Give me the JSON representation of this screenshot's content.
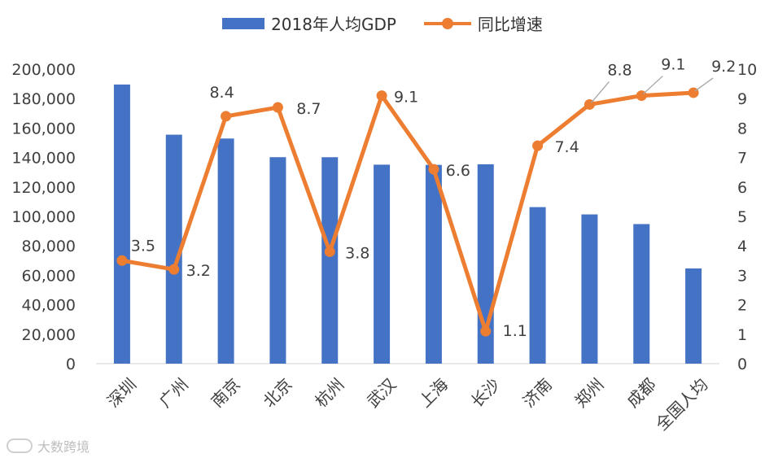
{
  "chart_data": {
    "type": "bar+line",
    "categories": [
      "深圳",
      "广州",
      "南京",
      "北京",
      "杭州",
      "武汉",
      "上海",
      "长沙",
      "济南",
      "郑州",
      "成都",
      "全国人均"
    ],
    "series": [
      {
        "name": "2018年人均GDP",
        "type": "bar",
        "axis": "left",
        "values": [
          189568,
          155491,
          152886,
          140211,
          140180,
          135136,
          134982,
          135388,
          106302,
          101349,
          94782,
          64644
        ]
      },
      {
        "name": "同比增速",
        "type": "line",
        "axis": "right",
        "values": [
          3.5,
          3.2,
          8.4,
          8.7,
          3.8,
          9.1,
          6.6,
          1.1,
          7.4,
          8.8,
          9.1,
          9.2
        ],
        "labels": [
          "3.5",
          "3.2",
          "8.4",
          "8.7",
          "3.8",
          "9.1",
          "6.6",
          "1.1",
          "7.4",
          "8.8",
          "9.1",
          "9.2"
        ]
      }
    ],
    "y_left": {
      "min": 0,
      "max": 200000,
      "step": 20000,
      "ticks": [
        "0",
        "20,000",
        "40,000",
        "60,000",
        "80,000",
        "100,000",
        "120,000",
        "140,000",
        "160,000",
        "180,000",
        "200,000"
      ]
    },
    "y_right": {
      "min": 0,
      "max": 10,
      "step": 1,
      "ticks": [
        "0",
        "1",
        "2",
        "3",
        "4",
        "5",
        "6",
        "7",
        "8",
        "9",
        "10"
      ]
    },
    "legend": [
      "2018年人均GDP",
      "同比增速"
    ],
    "colors": {
      "bar": "#4472C4",
      "line": "#ED7D31",
      "axis": "#d9d9d9",
      "text": "#404040"
    }
  },
  "watermark": "大数跨境"
}
